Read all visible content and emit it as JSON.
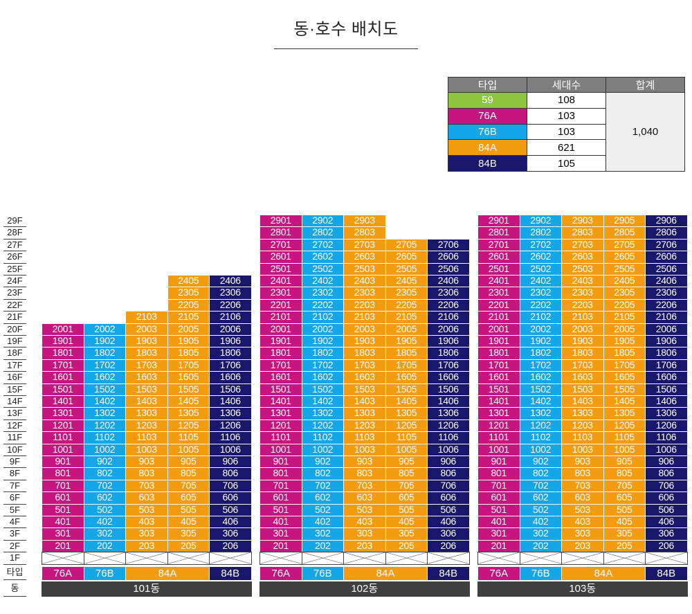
{
  "title": "동·호수 배치도",
  "legend": {
    "headers": [
      "타입",
      "세대수",
      "합계"
    ],
    "rows": [
      {
        "type": "59",
        "count": "108",
        "color": "#8dc63f"
      },
      {
        "type": "76A",
        "count": "103",
        "color": "#c6157f"
      },
      {
        "type": "76B",
        "count": "103",
        "color": "#15a6e7"
      },
      {
        "type": "84A",
        "count": "621",
        "color": "#f39c10"
      },
      {
        "type": "84B",
        "count": "105",
        "color": "#19176b"
      }
    ],
    "total": "1,040"
  },
  "floor_labels": [
    "29F",
    "28F",
    "27F",
    "26F",
    "25F",
    "24F",
    "23F",
    "22F",
    "21F",
    "20F",
    "19F",
    "18F",
    "17F",
    "16F",
    "15F",
    "14F",
    "13F",
    "12F",
    "11F",
    "10F",
    "9F",
    "8F",
    "7F",
    "6F",
    "5F",
    "4F",
    "3F",
    "2F",
    "1F"
  ],
  "row_labels": {
    "type": "타입",
    "building": "동"
  },
  "type_colors": {
    "59": "#8dc63f",
    "76A": "#c6157f",
    "76B": "#15a6e7",
    "84A": "#f39c10",
    "84B": "#19176b"
  },
  "buildings": [
    {
      "name": "101동",
      "columns": [
        {
          "suffix": "01",
          "type": "76A",
          "top": 20
        },
        {
          "suffix": "02",
          "type": "76B",
          "top": 20
        },
        {
          "suffix": "03",
          "type": "84A",
          "top": 21
        },
        {
          "suffix": "05",
          "type": "84A",
          "top": 24
        },
        {
          "suffix": "06",
          "type": "84B",
          "top": 24
        }
      ],
      "type_groups": [
        {
          "label": "76A",
          "type": "76A",
          "span": 1
        },
        {
          "label": "76B",
          "type": "76B",
          "span": 1
        },
        {
          "label": "84A",
          "type": "84A",
          "span": 2
        },
        {
          "label": "84B",
          "type": "84B",
          "span": 1
        }
      ]
    },
    {
      "name": "102동",
      "columns": [
        {
          "suffix": "01",
          "type": "76A",
          "top": 29
        },
        {
          "suffix": "02",
          "type": "76B",
          "top": 29
        },
        {
          "suffix": "03",
          "type": "84A",
          "top": 29
        },
        {
          "suffix": "05",
          "type": "84A",
          "top": 27
        },
        {
          "suffix": "06",
          "type": "84B",
          "top": 27
        }
      ],
      "type_groups": [
        {
          "label": "76A",
          "type": "76A",
          "span": 1
        },
        {
          "label": "76B",
          "type": "76B",
          "span": 1
        },
        {
          "label": "84A",
          "type": "84A",
          "span": 2
        },
        {
          "label": "84B",
          "type": "84B",
          "span": 1
        }
      ]
    },
    {
      "name": "103동",
      "columns": [
        {
          "suffix": "01",
          "type": "76A",
          "top": 29
        },
        {
          "suffix": "02",
          "type": "76B",
          "top": 29
        },
        {
          "suffix": "03",
          "type": "84A",
          "top": 29
        },
        {
          "suffix": "05",
          "type": "84A",
          "top": 29
        },
        {
          "suffix": "06",
          "type": "84B",
          "top": 29
        }
      ],
      "type_groups": [
        {
          "label": "76A",
          "type": "76A",
          "span": 1
        },
        {
          "label": "76B",
          "type": "76B",
          "span": 1
        },
        {
          "label": "84A",
          "type": "84A",
          "span": 2
        },
        {
          "label": "84B",
          "type": "84B",
          "span": 1
        }
      ]
    }
  ]
}
